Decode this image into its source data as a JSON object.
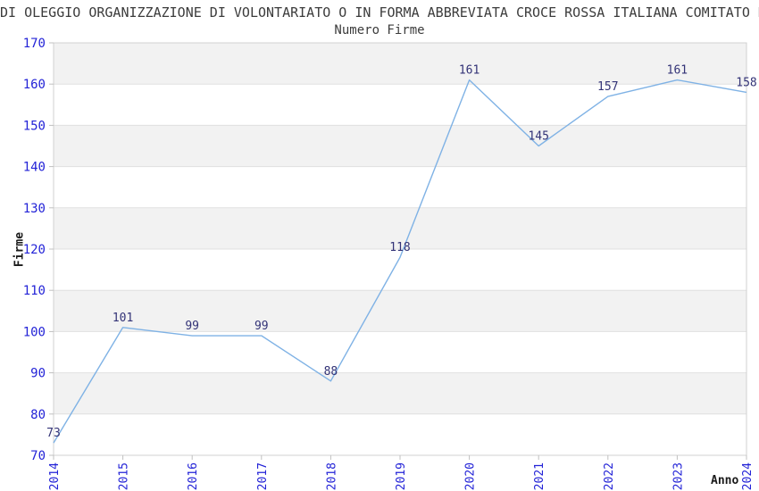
{
  "title": "DI OLEGGIO ORGANIZZAZIONE DI VOLONTARIATO O IN FORMA ABBREVIATA CROCE ROSSA ITALIANA COMITATO D",
  "chart_data": {
    "type": "line",
    "title": "Numero Firme",
    "xlabel": "Anno",
    "ylabel": "Firme",
    "categories": [
      "2014",
      "2015",
      "2016",
      "2017",
      "2018",
      "2019",
      "2020",
      "2021",
      "2022",
      "2023",
      "2024"
    ],
    "values": [
      73,
      101,
      99,
      99,
      88,
      118,
      161,
      145,
      157,
      161,
      158
    ],
    "ylim": [
      70,
      170
    ],
    "yticks": [
      70,
      80,
      90,
      100,
      110,
      120,
      130,
      140,
      150,
      160,
      170
    ],
    "grid": true,
    "legend": "none",
    "colors": {
      "line": "#7fb2e5",
      "tick_label": "#2323d7",
      "value_label": "#333377",
      "band_gray": "#f2f2f2",
      "band_white": "#ffffff",
      "gridline": "#e0e0e0",
      "plot_border": "#d0d0d0",
      "tick_mark": "#c0c0c0",
      "title_text": "#3c3c3c",
      "axis_title_text": "#1a1a1a"
    }
  }
}
